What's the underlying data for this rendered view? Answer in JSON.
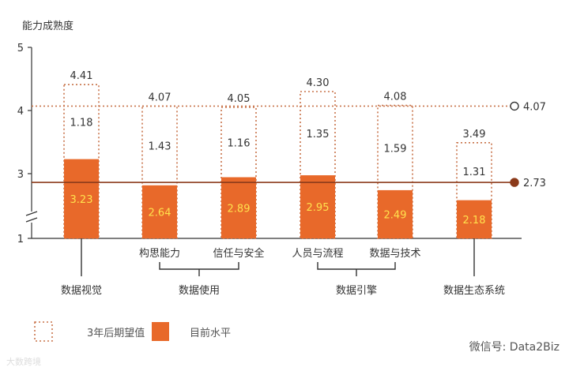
{
  "chart_data": {
    "type": "bar",
    "ylabel": "能力成熟度",
    "y_ticks": [
      "1",
      "3",
      "4",
      "5"
    ],
    "y_axis_break": true,
    "categories": [
      "数据视觉",
      "构思能力",
      "信任与安全",
      "人员与流程",
      "数据与技术",
      "数据生态系统"
    ],
    "series": [
      {
        "name": "目前水平",
        "values": [
          3.23,
          2.64,
          2.89,
          2.95,
          2.49,
          2.18
        ]
      },
      {
        "name": "3年后期望值",
        "values": [
          4.41,
          4.07,
          4.05,
          4.3,
          4.08,
          3.49
        ]
      }
    ],
    "gap_labels": [
      "1.18",
      "1.43",
      "1.16",
      "1.35",
      "1.59",
      "1.31"
    ],
    "current_labels": [
      "3.23",
      "2.64",
      "2.89",
      "2.95",
      "2.49",
      "2.18"
    ],
    "expected_labels": [
      "4.41",
      "4.07",
      "4.05",
      "4.30",
      "4.08",
      "3.49"
    ],
    "reference_lines": [
      {
        "value": 4.07,
        "label": "4.07",
        "style": "dotted",
        "marker": "open-circle"
      },
      {
        "value": 2.73,
        "label": "2.73",
        "style": "solid",
        "marker": "filled-circle"
      }
    ],
    "groups": [
      {
        "label": "数据使用",
        "members": [
          "构思能力",
          "信任与安全"
        ]
      },
      {
        "label": "数据引擎",
        "members": [
          "人员与流程",
          "数据与技术"
        ]
      }
    ],
    "group_labels": [
      "数据视觉",
      "数据使用",
      "数据引擎",
      "数据生态系统"
    ],
    "legend": [
      "3年后期望值",
      "目前水平"
    ],
    "legend_position": "bottom-left",
    "colors": {
      "current": "#E8692A",
      "expected": "#C8734A",
      "avg_current": "#8B3A1A",
      "text_in_bar": "#FFE14D",
      "axis": "#333333"
    }
  },
  "watermark_right": "微信号: Data2Biz",
  "watermark_left": "大数跨境"
}
